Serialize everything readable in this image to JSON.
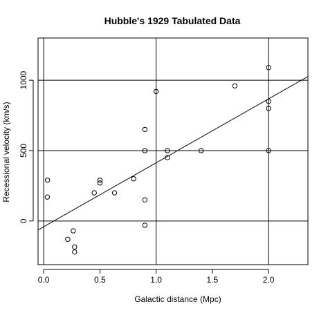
{
  "chart_data": {
    "type": "scatter",
    "title": "Hubble's 1929 Tabulated Data",
    "xlabel": "Galactic distance  (Mpc)",
    "ylabel": "Recessional velocity (km/s)",
    "xlim": [
      -0.05,
      2.35
    ],
    "ylim": [
      -310,
      1300
    ],
    "x_ticks": [
      0.0,
      0.5,
      1.0,
      1.5,
      2.0
    ],
    "x_tick_labels": [
      "0.0",
      "0.5",
      "1.0",
      "1.5",
      "2.0"
    ],
    "y_ticks": [
      0,
      500,
      1000
    ],
    "y_tick_labels": [
      "0",
      "500",
      "1000"
    ],
    "grid": {
      "vertical": [
        0.0,
        1.0,
        2.0
      ],
      "horizontal": [
        0,
        500,
        1000
      ]
    },
    "fit_line": {
      "intercept": -40.8,
      "slope": 454.2
    },
    "points": [
      {
        "x": 0.032,
        "y": 170
      },
      {
        "x": 0.034,
        "y": 290
      },
      {
        "x": 0.214,
        "y": -130
      },
      {
        "x": 0.263,
        "y": -70
      },
      {
        "x": 0.275,
        "y": -185
      },
      {
        "x": 0.275,
        "y": -220
      },
      {
        "x": 0.45,
        "y": 200
      },
      {
        "x": 0.5,
        "y": 290
      },
      {
        "x": 0.5,
        "y": 270
      },
      {
        "x": 0.63,
        "y": 200
      },
      {
        "x": 0.8,
        "y": 300
      },
      {
        "x": 0.9,
        "y": -30
      },
      {
        "x": 0.9,
        "y": 650
      },
      {
        "x": 0.9,
        "y": 150
      },
      {
        "x": 0.9,
        "y": 500
      },
      {
        "x": 1.0,
        "y": 920
      },
      {
        "x": 1.1,
        "y": 450
      },
      {
        "x": 1.1,
        "y": 500
      },
      {
        "x": 1.4,
        "y": 500
      },
      {
        "x": 1.7,
        "y": 960
      },
      {
        "x": 2.0,
        "y": 500
      },
      {
        "x": 2.0,
        "y": 850
      },
      {
        "x": 2.0,
        "y": 800
      },
      {
        "x": 2.0,
        "y": 1090
      }
    ]
  }
}
